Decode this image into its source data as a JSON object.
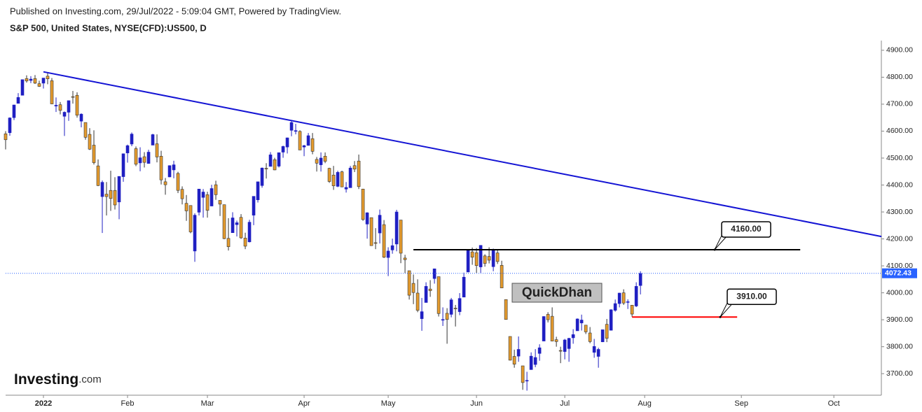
{
  "chart_data": {
    "type": "candlestick",
    "publisher": "Published on Investing.com, 29/Jul/2022 - 5:09:04 GMT, Powered by TradingView.",
    "title": "S&P 500, United States, NYSE(CFD):US500, D",
    "watermark": "QuickDhan",
    "logo": {
      "brand": "Investing",
      "suffix": ".com"
    },
    "up_color": "#1f1fc2",
    "down_color": "#e59b2d",
    "xlim": [
      -9,
      199.3
    ],
    "xticks": [
      {
        "value": 0,
        "label": "2022"
      },
      {
        "value": 20,
        "label": "Feb"
      },
      {
        "value": 39,
        "label": "Mar"
      },
      {
        "value": 62,
        "label": "Apr"
      },
      {
        "value": 82,
        "label": "May"
      },
      {
        "value": 103,
        "label": "Jun"
      },
      {
        "value": 124,
        "label": "Jul"
      },
      {
        "value": 143,
        "label": "Aug"
      },
      {
        "value": 166,
        "label": "Sep"
      },
      {
        "value": 188,
        "label": "Oct"
      }
    ],
    "ylim": [
      3620,
      4936
    ],
    "yticks": [
      {
        "value": 3700,
        "label": "3700.00"
      },
      {
        "value": 3800,
        "label": "3800.00"
      },
      {
        "value": 3900,
        "label": "3900.00"
      },
      {
        "value": 4000,
        "label": "4000.00"
      },
      {
        "value": 4100,
        "label": "4100.00"
      },
      {
        "value": 4200,
        "label": "4200.00"
      },
      {
        "value": 4300,
        "label": "4300.00"
      },
      {
        "value": 4400,
        "label": "4400.00"
      },
      {
        "value": 4500,
        "label": "4500.00"
      },
      {
        "value": 4600,
        "label": "4600.00"
      },
      {
        "value": 4700,
        "label": "4700.00"
      },
      {
        "value": 4800,
        "label": "4800.00"
      },
      {
        "value": 4900,
        "label": "4900.00"
      }
    ],
    "last_price": {
      "value": 4072.43,
      "label": "4072.43",
      "color": "#2962ff"
    },
    "trendline": {
      "x": [
        0,
        199.3
      ],
      "y": [
        4820,
        4209
      ],
      "color": "#1414d4"
    },
    "levels": [
      {
        "value": 4160,
        "label": "4160.00",
        "x": [
          88,
          180
        ],
        "color": "#000000"
      },
      {
        "value": 3910,
        "label": "3910.00",
        "x": [
          140,
          165
        ],
        "color": "#ff0000"
      }
    ],
    "x": [
      -9,
      -8,
      -7,
      -6,
      -5,
      -4,
      -3,
      -2,
      -1,
      0,
      1,
      2,
      3,
      4,
      5,
      6,
      7,
      8,
      9,
      10,
      11,
      12,
      13,
      14,
      15,
      16,
      17,
      18,
      19,
      20,
      21,
      22,
      23,
      24,
      25,
      26,
      27,
      28,
      29,
      30,
      31,
      32,
      33,
      34,
      35,
      36,
      37,
      38,
      39,
      40,
      41,
      42,
      43,
      44,
      45,
      46,
      47,
      48,
      49,
      50,
      51,
      52,
      53,
      54,
      55,
      56,
      57,
      58,
      59,
      60,
      61,
      62,
      63,
      64,
      65,
      66,
      67,
      68,
      69,
      70,
      71,
      72,
      73,
      74,
      75,
      76,
      77,
      78,
      79,
      80,
      81,
      82,
      83,
      84,
      85,
      86,
      87,
      88,
      89,
      90,
      91,
      92,
      93,
      94,
      95,
      96,
      97,
      98,
      99,
      100,
      101,
      102,
      103,
      104,
      105,
      106,
      107,
      108,
      109,
      110,
      111,
      112,
      113,
      114,
      115,
      116,
      117,
      118,
      119,
      120,
      121,
      122,
      123,
      124,
      125,
      126,
      127,
      128,
      129,
      130,
      131,
      132,
      133,
      134,
      135,
      136,
      137,
      138,
      139,
      140,
      141,
      142
    ],
    "candles": [
      [
        4590,
        4600,
        4532,
        4568
      ],
      [
        4594,
        4651,
        4583,
        4649
      ],
      [
        4650,
        4698,
        4641,
        4697
      ],
      [
        4703,
        4741,
        4703,
        4725
      ],
      [
        4733,
        4791,
        4733,
        4791
      ],
      [
        4795,
        4807,
        4780,
        4786
      ],
      [
        4788,
        4804,
        4778,
        4793
      ],
      [
        4795,
        4808,
        4775,
        4778
      ],
      [
        4776,
        4787,
        4764,
        4766
      ],
      [
        4778,
        4797,
        4758,
        4797
      ],
      [
        4804,
        4819,
        4774,
        4794
      ],
      [
        4787,
        4797,
        4700,
        4701
      ],
      [
        4693,
        4725,
        4671,
        4696
      ],
      [
        4698,
        4708,
        4662,
        4677
      ],
      [
        4655,
        4673,
        4582,
        4670
      ],
      [
        4670,
        4714,
        4638,
        4713
      ],
      [
        4728,
        4749,
        4702,
        4726
      ],
      [
        4733,
        4744,
        4650,
        4659
      ],
      [
        4637,
        4666,
        4614,
        4663
      ],
      [
        4632,
        4632,
        4568,
        4577
      ],
      [
        4588,
        4611,
        4530,
        4533
      ],
      [
        4548,
        4603,
        4476,
        4483
      ],
      [
        4471,
        4495,
        4396,
        4398
      ],
      [
        4357,
        4417,
        4222,
        4410
      ],
      [
        4366,
        4411,
        4287,
        4357
      ],
      [
        4380,
        4453,
        4304,
        4350
      ],
      [
        4380,
        4429,
        4309,
        4326
      ],
      [
        4337,
        4432,
        4273,
        4432
      ],
      [
        4431,
        4517,
        4412,
        4516
      ],
      [
        4519,
        4550,
        4483,
        4546
      ],
      [
        4552,
        4595,
        4544,
        4589
      ],
      [
        4535,
        4543,
        4470,
        4477
      ],
      [
        4482,
        4540,
        4451,
        4501
      ],
      [
        4505,
        4522,
        4465,
        4484
      ],
      [
        4480,
        4531,
        4480,
        4522
      ],
      [
        4548,
        4590,
        4548,
        4587
      ],
      [
        4553,
        4588,
        4484,
        4504
      ],
      [
        4507,
        4527,
        4402,
        4419
      ],
      [
        4412,
        4426,
        4364,
        4401
      ],
      [
        4430,
        4473,
        4429,
        4472
      ],
      [
        4456,
        4490,
        4425,
        4475
      ],
      [
        4443,
        4449,
        4370,
        4380
      ],
      [
        4384,
        4395,
        4328,
        4349
      ],
      [
        4332,
        4363,
        4267,
        4304
      ],
      [
        4324,
        4324,
        4221,
        4226
      ],
      [
        4155,
        4295,
        4115,
        4288
      ],
      [
        4299,
        4385,
        4287,
        4385
      ],
      [
        4354,
        4385,
        4279,
        4374
      ],
      [
        4364,
        4375,
        4279,
        4306
      ],
      [
        4322,
        4401,
        4322,
        4387
      ],
      [
        4401,
        4416,
        4345,
        4364
      ],
      [
        4343,
        4343,
        4285,
        4329
      ],
      [
        4327,
        4327,
        4199,
        4201
      ],
      [
        4202,
        4277,
        4157,
        4171
      ],
      [
        4223,
        4299,
        4223,
        4278
      ],
      [
        4253,
        4268,
        4209,
        4260
      ],
      [
        4280,
        4292,
        4200,
        4204
      ],
      [
        4203,
        4223,
        4162,
        4173
      ],
      [
        4189,
        4271,
        4187,
        4262
      ],
      [
        4288,
        4358,
        4251,
        4358
      ],
      [
        4345,
        4412,
        4335,
        4412
      ],
      [
        4398,
        4465,
        4390,
        4463
      ],
      [
        4462,
        4481,
        4424,
        4461
      ],
      [
        4469,
        4522,
        4469,
        4512
      ],
      [
        4494,
        4501,
        4455,
        4456
      ],
      [
        4470,
        4520,
        4465,
        4520
      ],
      [
        4522,
        4546,
        4501,
        4543
      ],
      [
        4541,
        4576,
        4517,
        4575
      ],
      [
        4603,
        4637,
        4581,
        4632
      ],
      [
        4599,
        4627,
        4588,
        4602
      ],
      [
        4599,
        4603,
        4530,
        4530
      ],
      [
        4541,
        4549,
        4507,
        4546
      ],
      [
        4547,
        4593,
        4546,
        4583
      ],
      [
        4572,
        4593,
        4514,
        4525
      ],
      [
        4495,
        4504,
        4450,
        4481
      ],
      [
        4475,
        4521,
        4450,
        4500
      ],
      [
        4507,
        4521,
        4481,
        4488
      ],
      [
        4462,
        4464,
        4408,
        4413
      ],
      [
        4437,
        4471,
        4382,
        4397
      ],
      [
        4395,
        4453,
        4392,
        4447
      ],
      [
        4449,
        4453,
        4392,
        4393
      ],
      [
        4385,
        4411,
        4372,
        4391
      ],
      [
        4390,
        4471,
        4390,
        4463
      ],
      [
        4472,
        4489,
        4448,
        4459
      ],
      [
        4489,
        4513,
        4385,
        4394
      ],
      [
        4385,
        4386,
        4267,
        4272
      ],
      [
        4255,
        4299,
        4201,
        4297
      ],
      [
        4279,
        4279,
        4175,
        4175
      ],
      [
        4186,
        4240,
        4162,
        4184
      ],
      [
        4222,
        4309,
        4183,
        4288
      ],
      [
        4253,
        4270,
        4129,
        4132
      ],
      [
        4131,
        4169,
        4062,
        4155
      ],
      [
        4159,
        4201,
        4145,
        4175
      ],
      [
        4181,
        4308,
        4154,
        4300
      ],
      [
        4270,
        4270,
        4110,
        4147
      ],
      [
        4129,
        4141,
        4073,
        4123
      ],
      [
        4082,
        4082,
        3975,
        3991
      ],
      [
        4035,
        4068,
        3958,
        4001
      ],
      [
        3999,
        4050,
        3928,
        3935
      ],
      [
        3904,
        3981,
        3859,
        3930
      ],
      [
        3964,
        4039,
        3964,
        4024
      ],
      [
        4014,
        4047,
        3985,
        4008
      ],
      [
        4053,
        4090,
        4034,
        4089
      ],
      [
        4060,
        4060,
        3912,
        3923
      ],
      [
        3899,
        3946,
        3877,
        3901
      ],
      [
        3924,
        3943,
        3811,
        3901
      ],
      [
        3920,
        3981,
        3909,
        3974
      ],
      [
        3943,
        3955,
        3875,
        3941
      ],
      [
        3930,
        3999,
        3917,
        3979
      ],
      [
        3984,
        4075,
        3984,
        4058
      ],
      [
        4077,
        4158,
        4077,
        4158
      ],
      [
        4152,
        4168,
        4104,
        4132
      ],
      [
        4149,
        4166,
        4074,
        4101
      ],
      [
        4096,
        4177,
        4074,
        4176
      ],
      [
        4137,
        4143,
        4097,
        4109
      ],
      [
        4135,
        4169,
        4109,
        4121
      ],
      [
        4097,
        4164,
        4080,
        4161
      ],
      [
        4148,
        4160,
        4107,
        4116
      ],
      [
        4102,
        4119,
        4018,
        4018
      ],
      [
        3975,
        3975,
        3901,
        3901
      ],
      [
        3838,
        3838,
        3749,
        3750
      ],
      [
        3764,
        3789,
        3722,
        3735
      ],
      [
        3765,
        3838,
        3744,
        3790
      ],
      [
        3729,
        3729,
        3640,
        3667
      ],
      [
        3675,
        3707,
        3637,
        3675
      ],
      [
        3715,
        3779,
        3715,
        3765
      ],
      [
        3734,
        3791,
        3724,
        3760
      ],
      [
        3775,
        3809,
        3748,
        3796
      ],
      [
        3821,
        3913,
        3821,
        3912
      ],
      [
        3920,
        3928,
        3890,
        3900
      ],
      [
        3913,
        3946,
        3820,
        3821
      ],
      [
        3826,
        3837,
        3800,
        3819
      ],
      [
        3786,
        3800,
        3739,
        3785
      ],
      [
        3782,
        3829,
        3753,
        3825
      ],
      [
        3793,
        3833,
        3744,
        3831
      ],
      [
        3833,
        3865,
        3811,
        3845
      ],
      [
        3859,
        3905,
        3859,
        3903
      ],
      [
        3888,
        3919,
        3860,
        3899
      ],
      [
        3880,
        3880,
        3847,
        3855
      ],
      [
        3851,
        3873,
        3813,
        3819
      ],
      [
        3779,
        3829,
        3759,
        3801
      ],
      [
        3764,
        3796,
        3722,
        3790
      ],
      [
        3818,
        3863,
        3817,
        3863
      ],
      [
        3883,
        3903,
        3817,
        3831
      ],
      [
        3861,
        3939,
        3861,
        3937
      ],
      [
        3935,
        3975,
        3930,
        3960
      ],
      [
        3960,
        4000,
        3946,
        3999
      ],
      [
        4000,
        4013,
        3955,
        3962
      ],
      [
        3966,
        3976,
        3940,
        3967
      ],
      [
        3954,
        3955,
        3911,
        3921
      ],
      [
        3951,
        4039,
        3947,
        4024
      ],
      [
        4027,
        4080,
        3994,
        4072
      ]
    ]
  }
}
